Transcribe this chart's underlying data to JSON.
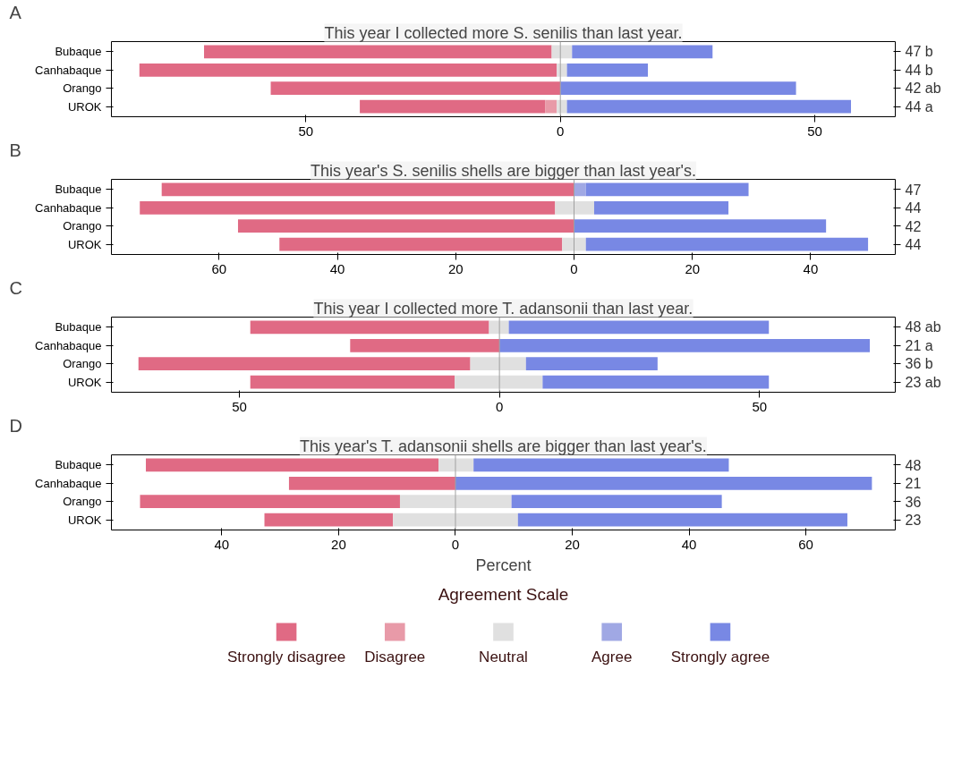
{
  "chart_data": [
    {
      "type": "bar",
      "orientation": "horizontal",
      "title": "This year I collected more S. senilis than last year.",
      "annotations": [
        "A"
      ],
      "categories": [
        "Bubaque",
        "Canhabaque",
        "Orango",
        "UROK"
      ],
      "y2_categories": [
        "47  b",
        "44  b",
        "42  ab",
        "44  a"
      ],
      "xlim": [
        -88.2,
        65.8
      ],
      "xticks": [
        {
          "value": -50,
          "label": "50"
        },
        0,
        50
      ],
      "ref_lines": [
        {
          "axis": "x",
          "value": 0,
          "color": "#a0a0a0"
        }
      ],
      "legend": false,
      "series": [
        {
          "color": "#e06a84",
          "base": [
            -70.0,
            -82.7,
            -56.9,
            -39.4
          ],
          "values": [
            68.3,
            82.0,
            56.9,
            36.4
          ]
        },
        {
          "color": "#e89aa8",
          "base": [
            null,
            null,
            null,
            -3.0
          ],
          "values": [
            null,
            null,
            null,
            2.3
          ]
        },
        {
          "color": "#e0e0e0",
          "base": [
            -1.7,
            -0.7,
            null,
            -0.7
          ],
          "values": [
            4.0,
            2.0,
            null,
            2.0
          ]
        },
        {
          "color": "#7888e4",
          "base": [
            2.3,
            1.3,
            0,
            1.3
          ],
          "values": [
            27.6,
            15.9,
            46.3,
            55.8
          ]
        }
      ]
    },
    {
      "type": "bar",
      "orientation": "horizontal",
      "title": "This year's S. senilis shells are bigger than last year's.",
      "annotations": [
        "B"
      ],
      "categories": [
        "Bubaque",
        "Canhabaque",
        "Orango",
        "UROK"
      ],
      "y2_categories": [
        "47",
        "44",
        "42",
        "44"
      ],
      "xlim": [
        -78.2,
        54.3
      ],
      "xticks": [
        {
          "value": -60,
          "label": "60"
        },
        {
          "value": -40,
          "label": "40"
        },
        {
          "value": -20,
          "label": "20"
        },
        0,
        20,
        40
      ],
      "ref_lines": [
        {
          "axis": "x",
          "value": 0,
          "color": "#a0a0a0"
        }
      ],
      "legend": false,
      "series": [
        {
          "color": "#e06a84",
          "base": [
            -69.7,
            -73.4,
            -56.8,
            -49.8
          ],
          "values": [
            69.7,
            70.2,
            56.8,
            47.8
          ]
        },
        {
          "color": "#e0e0e0",
          "base": [
            null,
            -3.2,
            null,
            -2.0
          ],
          "values": [
            null,
            6.6,
            null,
            4.0
          ]
        },
        {
          "color": "#a0a8e4",
          "base": [
            0,
            null,
            null,
            null
          ],
          "values": [
            2.0,
            null,
            null,
            null
          ]
        },
        {
          "color": "#7888e4",
          "base": [
            2.0,
            3.4,
            0,
            2.0
          ],
          "values": [
            27.5,
            22.7,
            42.6,
            47.7
          ]
        }
      ]
    },
    {
      "type": "bar",
      "orientation": "horizontal",
      "title": "This year I collected more T. adansonii than last year.",
      "annotations": [
        "C"
      ],
      "categories": [
        "Bubaque",
        "Canhabaque",
        "Orango",
        "UROK"
      ],
      "y2_categories": [
        "48  ab",
        "21  a",
        "36  b",
        "23  ab"
      ],
      "xlim": [
        -74.6,
        76.1
      ],
      "xticks": [
        {
          "value": -50,
          "label": "50"
        },
        0,
        50
      ],
      "ref_lines": [
        {
          "axis": "x",
          "value": 0,
          "color": "#a0a0a0"
        }
      ],
      "legend": false,
      "series": [
        {
          "color": "#e06a84",
          "base": [
            -47.9,
            -28.7,
            -69.4,
            -47.9
          ],
          "values": [
            45.9,
            28.7,
            63.8,
            39.3
          ]
        },
        {
          "color": "#e0e0e0",
          "base": [
            -2.0,
            null,
            -5.6,
            -8.6
          ],
          "values": [
            3.8,
            null,
            10.7,
            16.9
          ]
        },
        {
          "color": "#7888e4",
          "base": [
            1.8,
            0,
            5.1,
            8.3
          ],
          "values": [
            50.0,
            71.2,
            25.3,
            43.5
          ]
        }
      ]
    },
    {
      "type": "bar",
      "orientation": "horizontal",
      "title": "This year's T. adansonii shells are bigger than last year's.",
      "annotations": [
        "D"
      ],
      "xlabel": "Percent",
      "legend_title": "Agreement Scale",
      "legend": "bottom",
      "categories": [
        "Bubaque",
        "Canhabaque",
        "Orango",
        "UROK"
      ],
      "y2_categories": [
        "48",
        "21",
        "36",
        "23"
      ],
      "xlim": [
        -58.9,
        75.3
      ],
      "xticks": [
        {
          "value": -40,
          "label": "40"
        },
        {
          "value": -20,
          "label": "20"
        },
        0,
        20,
        40,
        60
      ],
      "ref_lines": [
        {
          "axis": "x",
          "value": 0,
          "color": "#a0a0a0"
        }
      ],
      "series": [
        {
          "name": "Strongly disagree",
          "color": "#e06a84",
          "base": [
            -53.0,
            -28.5,
            -54.0,
            -32.7
          ],
          "values": [
            50.1,
            28.5,
            44.5,
            22.0
          ]
        },
        {
          "name": "Disagree",
          "color": "#e89aa8",
          "base": [
            null,
            null,
            null,
            null
          ],
          "values": [
            null,
            null,
            null,
            null
          ]
        },
        {
          "name": "Neutral",
          "color": "#e0e0e0",
          "base": [
            -2.9,
            null,
            -9.5,
            -10.7
          ],
          "values": [
            6.0,
            null,
            19.1,
            21.4
          ]
        },
        {
          "name": "Agree",
          "color": "#a0a8e4",
          "base": [
            null,
            null,
            null,
            null
          ],
          "values": [
            null,
            null,
            null,
            null
          ]
        },
        {
          "name": "Strongly agree",
          "color": "#7888e4",
          "base": [
            3.1,
            0,
            9.6,
            10.7
          ],
          "values": [
            43.7,
            71.3,
            36.0,
            56.4
          ]
        }
      ]
    }
  ]
}
